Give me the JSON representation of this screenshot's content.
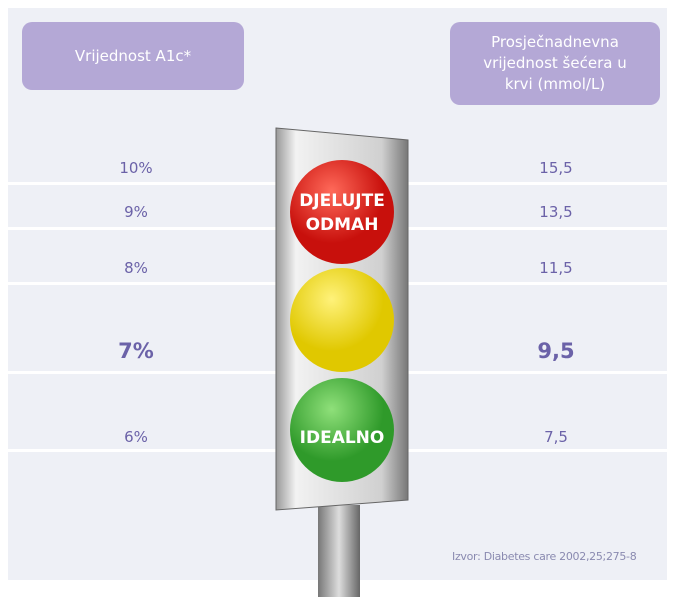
{
  "header": {
    "left": "Vrijednost A1c*",
    "right": "Prosječnadnevna vrijednost šećera u krvi (mmol/L)"
  },
  "table": {
    "rows": [
      [
        "10%",
        "15,5"
      ],
      [
        "9%",
        "13,5"
      ],
      [
        "8%",
        "11,5"
      ],
      [
        "7%",
        "9,5"
      ],
      [
        "6%",
        "7,5"
      ]
    ]
  },
  "lights": {
    "red": "DJELUJTE ODMAH",
    "green": "IDEALNO"
  },
  "source": "Izvor: Diabetes care 2002,25;275-8"
}
